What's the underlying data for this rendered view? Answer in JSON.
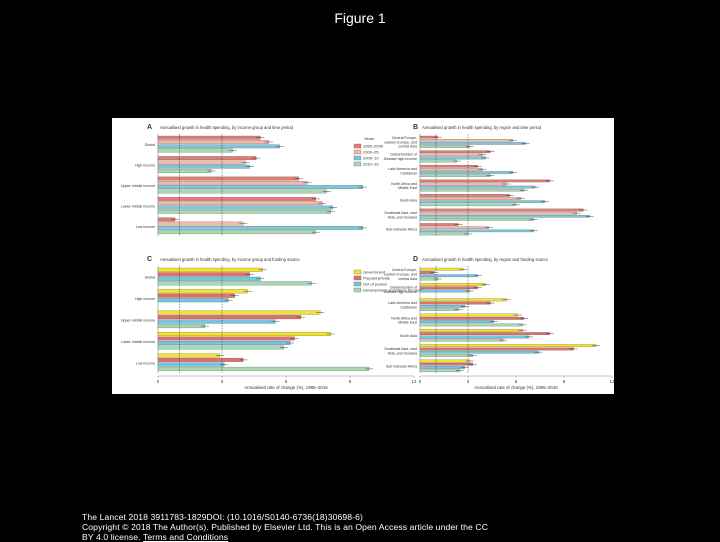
{
  "page": {
    "title": "Figure 1",
    "citation_line1": "The Lancet 2018 3911783-1829DOI: (10.1016/S0140-6736(18)30698-6)",
    "citation_line2": "Copyright © 2018 The Author(s). Published by Elsevier Ltd. This is an Open Access article under the CC",
    "citation_line3": "BY 4.0 license.",
    "citation_link": "Terms and Conditions"
  },
  "colors": {
    "period_1995_2000": "#e07c74",
    "period_2000_05": "#f2b8a8",
    "period_2005_10": "#7fc7d9",
    "period_2010_15": "#a8d8b0",
    "government": "#f5e22c",
    "prepaid_private": "#e0706a",
    "out_of_pocket": "#74c5e0",
    "development_assistance": "#a8d8b0"
  },
  "chart_data": [
    {
      "panel": "A",
      "type": "bar",
      "orientation": "horizontal",
      "title": "Annualised growth in health spending, by income group and time period",
      "categories": [
        "Global",
        "High income",
        "Upper-middle income",
        "Lower-middle income",
        "Low income"
      ],
      "legend": {
        "title": "Years",
        "entries": [
          "1995–2000",
          "2000–05",
          "2005–10",
          "2010–15"
        ],
        "position": "top-right"
      },
      "series": [
        {
          "name": "1995–2000",
          "values": [
            4.8,
            4.6,
            6.6,
            7.4,
            0.8
          ]
        },
        {
          "name": "2000–05",
          "values": [
            5.2,
            4.1,
            7.0,
            7.7,
            4.0
          ]
        },
        {
          "name": "2005–10",
          "values": [
            5.7,
            4.3,
            9.6,
            8.2,
            9.6
          ]
        },
        {
          "name": "2010–15",
          "values": [
            3.5,
            2.5,
            7.9,
            8.1,
            7.4
          ]
        }
      ],
      "xlim": [
        0,
        12
      ],
      "grid": false
    },
    {
      "panel": "B",
      "type": "bar",
      "orientation": "horizontal",
      "title": "Annualised growth in health spending, by region and time period",
      "categories": [
        "Central Europe, eastern Europe, and central Asia",
        "Global Burden of Disease high income",
        "Latin America and Caribbean",
        "North Africa and Middle East",
        "South Asia",
        "Southeast Asia, east Asia, and Oceania",
        "Sub-Saharan Africa"
      ],
      "series": [
        {
          "name": "1995–2000",
          "values": [
            1.1,
            4.4,
            3.6,
            8.1,
            5.6,
            10.2,
            2.4
          ]
        },
        {
          "name": "2000–05",
          "values": [
            5.8,
            3.9,
            3.9,
            5.4,
            6.3,
            9.8,
            4.3
          ]
        },
        {
          "name": "2005–10",
          "values": [
            6.6,
            4.1,
            5.8,
            7.2,
            7.8,
            10.6,
            7.1
          ]
        },
        {
          "name": "2010–15",
          "values": [
            3.1,
            2.3,
            4.4,
            6.5,
            6.0,
            7.1,
            3.0
          ]
        }
      ],
      "xlim": [
        0,
        12
      ],
      "grid": false
    },
    {
      "panel": "C",
      "type": "bar",
      "orientation": "horizontal",
      "title": "Annualised growth in health spending, by income group and funding source",
      "categories": [
        "Global",
        "High income",
        "Upper-middle income",
        "Lower-middle income",
        "Low income"
      ],
      "legend": {
        "entries": [
          "Government",
          "Prepaid private",
          "Out of pocket",
          "Development assistance for health"
        ],
        "position": "top-right"
      },
      "series": [
        {
          "name": "Government",
          "values": [
            4.9,
            4.2,
            7.6,
            8.1,
            2.9
          ]
        },
        {
          "name": "Prepaid private",
          "values": [
            4.3,
            3.6,
            6.7,
            6.4,
            4.0
          ]
        },
        {
          "name": "Out of pocket",
          "values": [
            4.8,
            3.3,
            5.5,
            6.2,
            3.1
          ]
        },
        {
          "name": "Development assistance for health",
          "values": [
            7.2,
            0,
            2.2,
            5.9,
            9.9
          ]
        }
      ],
      "xlabel": "Annualised rate of change (%), 1995–2015",
      "xlim": [
        0,
        12
      ],
      "xticks": [
        0,
        3,
        6,
        9,
        12
      ],
      "grid": false
    },
    {
      "panel": "D",
      "type": "bar",
      "orientation": "horizontal",
      "title": "Annualised growth in health spending, by region and funding source",
      "categories": [
        "Central Europe, eastern Europe, and central Asia",
        "Global Burden of Disease high income",
        "Latin America and Caribbean",
        "North Africa and Middle East",
        "South Asia",
        "Southeast Asia, east Asia, and Oceania",
        "Sub-Saharan Africa"
      ],
      "series": [
        {
          "name": "Government",
          "values": [
            2.7,
            4.1,
            5.4,
            6.1,
            6.4,
            11.0,
            3.1
          ]
        },
        {
          "name": "Prepaid private",
          "values": [
            0.9,
            3.6,
            4.4,
            6.5,
            8.1,
            9.6,
            3.3
          ]
        },
        {
          "name": "Out of pocket",
          "values": [
            3.6,
            3.1,
            2.8,
            4.6,
            6.8,
            7.4,
            2.8
          ]
        },
        {
          "name": "Development assistance for health",
          "values": [
            1.1,
            0,
            2.4,
            6.4,
            5.2,
            3.3,
            2.5
          ]
        }
      ],
      "xlabel": "Annualised rate of change (%), 1995–2015",
      "xlim": [
        0,
        12
      ],
      "xticks": [
        0,
        3,
        6,
        9,
        12
      ],
      "grid": false
    }
  ]
}
